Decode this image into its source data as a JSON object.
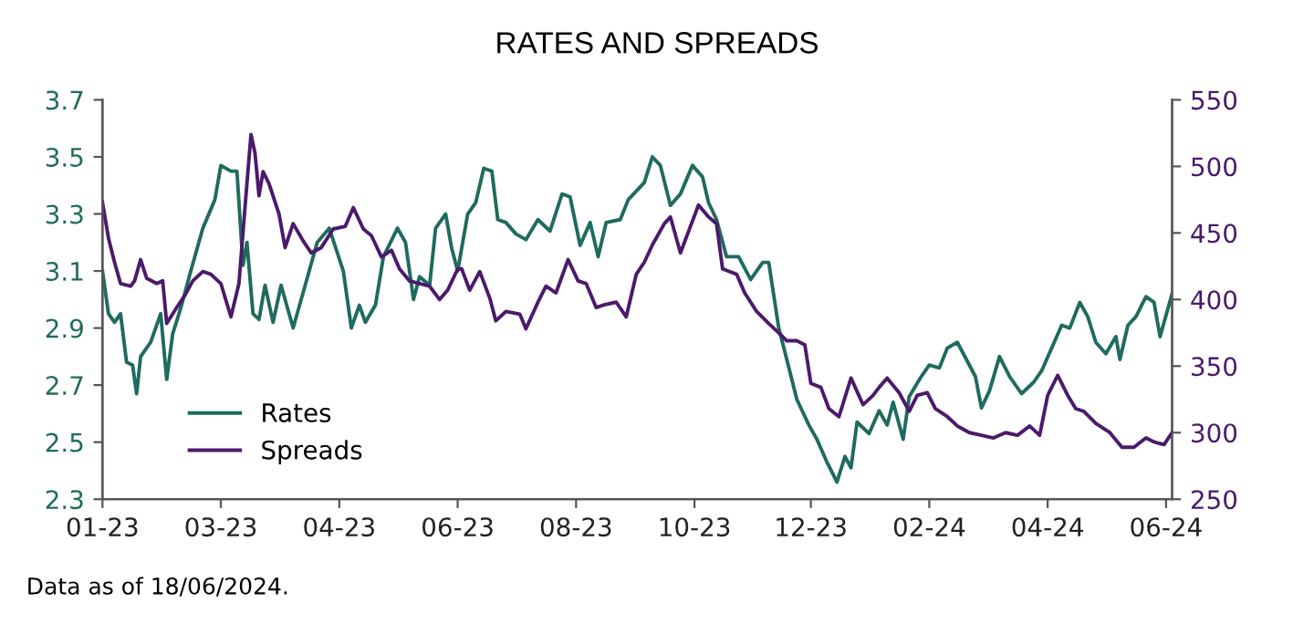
{
  "chart_data": {
    "type": "line",
    "title": "RATES AND SPREADS",
    "xlim": [
      "2023-01-02",
      "2024-06-18"
    ],
    "xticks": [
      {
        "value": "2023-01-02",
        "label": "01-23"
      },
      {
        "value": "2023-03-02",
        "label": "03-23"
      },
      {
        "value": "2023-04-30",
        "label": "04-23"
      },
      {
        "value": "2023-06-28",
        "label": "06-23"
      },
      {
        "value": "2023-08-26",
        "label": "08-23"
      },
      {
        "value": "2023-10-24",
        "label": "10-23"
      },
      {
        "value": "2023-12-21",
        "label": "12-23"
      },
      {
        "value": "2024-02-18",
        "label": "02-24"
      },
      {
        "value": "2024-04-17",
        "label": "04-24"
      },
      {
        "value": "2024-06-15",
        "label": "06-24"
      }
    ],
    "ylim": [
      2.3,
      3.7
    ],
    "yticks": [
      2.3,
      2.5,
      2.7,
      2.9,
      3.1,
      3.3,
      3.5,
      3.7
    ],
    "y2lim": [
      250,
      550
    ],
    "y2ticks": [
      250,
      300,
      350,
      400,
      450,
      500,
      550
    ],
    "legend": "bottom left",
    "grid": false,
    "line_style": "solid",
    "marker": "none",
    "series": [
      {
        "name": "Rates",
        "color": "#1f6b5e",
        "x": [
          "2023-01-02",
          "2023-01-05",
          "2023-01-08",
          "2023-01-11",
          "2023-01-14",
          "2023-01-17",
          "2023-01-19",
          "2023-01-21",
          "2023-01-26",
          "2023-01-31",
          "2023-02-03",
          "2023-02-06",
          "2023-02-10",
          "2023-02-15",
          "2023-02-21",
          "2023-02-27",
          "2023-03-02",
          "2023-03-07",
          "2023-03-10",
          "2023-03-13",
          "2023-03-15",
          "2023-03-18",
          "2023-03-21",
          "2023-03-24",
          "2023-03-28",
          "2023-04-01",
          "2023-04-07",
          "2023-04-13",
          "2023-04-19",
          "2023-04-25",
          "2023-05-02",
          "2023-05-06",
          "2023-05-10",
          "2023-05-13",
          "2023-05-18",
          "2023-05-22",
          "2023-05-29",
          "2023-06-02",
          "2023-06-06",
          "2023-06-09",
          "2023-06-14",
          "2023-06-17",
          "2023-06-22",
          "2023-06-25",
          "2023-06-28",
          "2023-07-03",
          "2023-07-07",
          "2023-07-11",
          "2023-07-15",
          "2023-07-18",
          "2023-07-22",
          "2023-07-27",
          "2023-08-01",
          "2023-08-07",
          "2023-08-13",
          "2023-08-19",
          "2023-08-23",
          "2023-08-28",
          "2023-09-02",
          "2023-09-06",
          "2023-09-10",
          "2023-09-17",
          "2023-09-21",
          "2023-09-29",
          "2023-10-03",
          "2023-10-07",
          "2023-10-12",
          "2023-10-17",
          "2023-10-23",
          "2023-10-28",
          "2023-10-31",
          "2023-11-04",
          "2023-11-09",
          "2023-11-15",
          "2023-11-21",
          "2023-11-27",
          "2023-11-30",
          "2023-12-05",
          "2023-12-09",
          "2023-12-14",
          "2023-12-20",
          "2023-12-24",
          "2023-12-29",
          "2024-01-03",
          "2024-01-07",
          "2024-01-10",
          "2024-01-13",
          "2024-01-19",
          "2024-01-24",
          "2024-01-28",
          "2024-01-31",
          "2024-02-05",
          "2024-02-08",
          "2024-02-14",
          "2024-02-18",
          "2024-02-23",
          "2024-02-27",
          "2024-03-03",
          "2024-03-06",
          "2024-03-12",
          "2024-03-15",
          "2024-03-19",
          "2024-03-24",
          "2024-03-29",
          "2024-04-04",
          "2024-04-10",
          "2024-04-14",
          "2024-04-19",
          "2024-04-24",
          "2024-04-28",
          "2024-05-03",
          "2024-05-07",
          "2024-05-11",
          "2024-05-16",
          "2024-05-21",
          "2024-05-23",
          "2024-05-27",
          "2024-05-31",
          "2024-06-05",
          "2024-06-09",
          "2024-06-12",
          "2024-06-16",
          "2024-06-18"
        ],
        "values": [
          3.1,
          2.95,
          2.92,
          2.95,
          2.78,
          2.77,
          2.67,
          2.8,
          2.85,
          2.95,
          2.72,
          2.88,
          2.97,
          3.1,
          3.25,
          3.35,
          3.47,
          3.45,
          3.45,
          3.12,
          3.2,
          2.95,
          2.93,
          3.05,
          2.92,
          3.05,
          2.9,
          3.05,
          3.2,
          3.25,
          3.1,
          2.9,
          2.98,
          2.92,
          2.98,
          3.15,
          3.25,
          3.2,
          3.0,
          3.08,
          3.05,
          3.25,
          3.3,
          3.18,
          3.1,
          3.3,
          3.34,
          3.46,
          3.45,
          3.28,
          3.27,
          3.23,
          3.21,
          3.28,
          3.24,
          3.37,
          3.36,
          3.19,
          3.27,
          3.15,
          3.27,
          3.28,
          3.35,
          3.41,
          3.5,
          3.47,
          3.33,
          3.37,
          3.47,
          3.43,
          3.34,
          3.28,
          3.15,
          3.15,
          3.07,
          3.13,
          3.13,
          2.9,
          2.79,
          2.65,
          2.56,
          2.51,
          2.43,
          2.36,
          2.45,
          2.41,
          2.57,
          2.53,
          2.61,
          2.56,
          2.64,
          2.51,
          2.66,
          2.73,
          2.77,
          2.76,
          2.83,
          2.85,
          2.81,
          2.73,
          2.62,
          2.68,
          2.8,
          2.73,
          2.67,
          2.71,
          2.75,
          2.83,
          2.91,
          2.9,
          2.99,
          2.94,
          2.85,
          2.81,
          2.87,
          2.79,
          2.91,
          2.94,
          3.01,
          2.99,
          2.87,
          2.97,
          3.02
        ]
      },
      {
        "name": "Spreads",
        "color": "#4b1a6b",
        "axis": "y2",
        "x": [
          "2023-01-02",
          "2023-01-05",
          "2023-01-08",
          "2023-01-11",
          "2023-01-16",
          "2023-01-18",
          "2023-01-21",
          "2023-01-24",
          "2023-01-29",
          "2023-02-01",
          "2023-02-03",
          "2023-02-08",
          "2023-02-12",
          "2023-02-16",
          "2023-02-21",
          "2023-02-25",
          "2023-03-02",
          "2023-03-07",
          "2023-03-11",
          "2023-03-14",
          "2023-03-17",
          "2023-03-19",
          "2023-03-21",
          "2023-03-23",
          "2023-03-26",
          "2023-03-31",
          "2023-04-03",
          "2023-04-07",
          "2023-04-12",
          "2023-04-16",
          "2023-04-21",
          "2023-04-27",
          "2023-05-03",
          "2023-05-07",
          "2023-05-12",
          "2023-05-16",
          "2023-05-21",
          "2023-05-26",
          "2023-05-30",
          "2023-06-04",
          "2023-06-09",
          "2023-06-14",
          "2023-06-19",
          "2023-06-23",
          "2023-06-28",
          "2023-06-30",
          "2023-07-04",
          "2023-07-09",
          "2023-07-14",
          "2023-07-17",
          "2023-07-22",
          "2023-07-29",
          "2023-08-01",
          "2023-08-07",
          "2023-08-11",
          "2023-08-16",
          "2023-08-22",
          "2023-08-27",
          "2023-08-31",
          "2023-09-05",
          "2023-09-09",
          "2023-09-15",
          "2023-09-20",
          "2023-09-25",
          "2023-09-29",
          "2023-10-03",
          "2023-10-09",
          "2023-10-12",
          "2023-10-17",
          "2023-10-22",
          "2023-10-26",
          "2023-10-31",
          "2023-11-04",
          "2023-11-07",
          "2023-11-14",
          "2023-11-18",
          "2023-11-24",
          "2023-11-30",
          "2023-12-05",
          "2023-12-09",
          "2023-12-14",
          "2023-12-18",
          "2023-12-21",
          "2023-12-26",
          "2023-12-30",
          "2024-01-04",
          "2024-01-10",
          "2024-01-16",
          "2024-01-21",
          "2024-01-24",
          "2024-01-28",
          "2024-02-03",
          "2024-02-08",
          "2024-02-12",
          "2024-02-17",
          "2024-02-21",
          "2024-02-27",
          "2024-03-03",
          "2024-03-09",
          "2024-03-15",
          "2024-03-21",
          "2024-03-27",
          "2024-04-02",
          "2024-04-08",
          "2024-04-13",
          "2024-04-17",
          "2024-04-22",
          "2024-04-27",
          "2024-05-01",
          "2024-05-05",
          "2024-05-11",
          "2024-05-18",
          "2024-05-24",
          "2024-05-30",
          "2024-06-05",
          "2024-06-09",
          "2024-06-14",
          "2024-06-18"
        ],
        "values": [
          473,
          446,
          428,
          412,
          410,
          414,
          430,
          416,
          412,
          414,
          382,
          394,
          403,
          414,
          421,
          419,
          412,
          387,
          412,
          469,
          524,
          510,
          478,
          496,
          487,
          464,
          439,
          457,
          444,
          435,
          439,
          453,
          455,
          469,
          453,
          448,
          432,
          437,
          423,
          414,
          412,
          410,
          400,
          407,
          423,
          423,
          407,
          421,
          401,
          384,
          391,
          389,
          378,
          398,
          410,
          405,
          430,
          414,
          412,
          394,
          396,
          398,
          387,
          419,
          428,
          441,
          457,
          462,
          435,
          455,
          471,
          462,
          457,
          423,
          419,
          405,
          391,
          382,
          375,
          369,
          369,
          366,
          337,
          334,
          318,
          312,
          341,
          321,
          328,
          334,
          341,
          330,
          316,
          328,
          330,
          318,
          312,
          305,
          300,
          298,
          296,
          300,
          298,
          305,
          298,
          328,
          343,
          328,
          318,
          316,
          307,
          300,
          289,
          289,
          296,
          293,
          291,
          300
        ]
      }
    ],
    "annotations": [
      "Data as of 18/06/2024."
    ]
  }
}
